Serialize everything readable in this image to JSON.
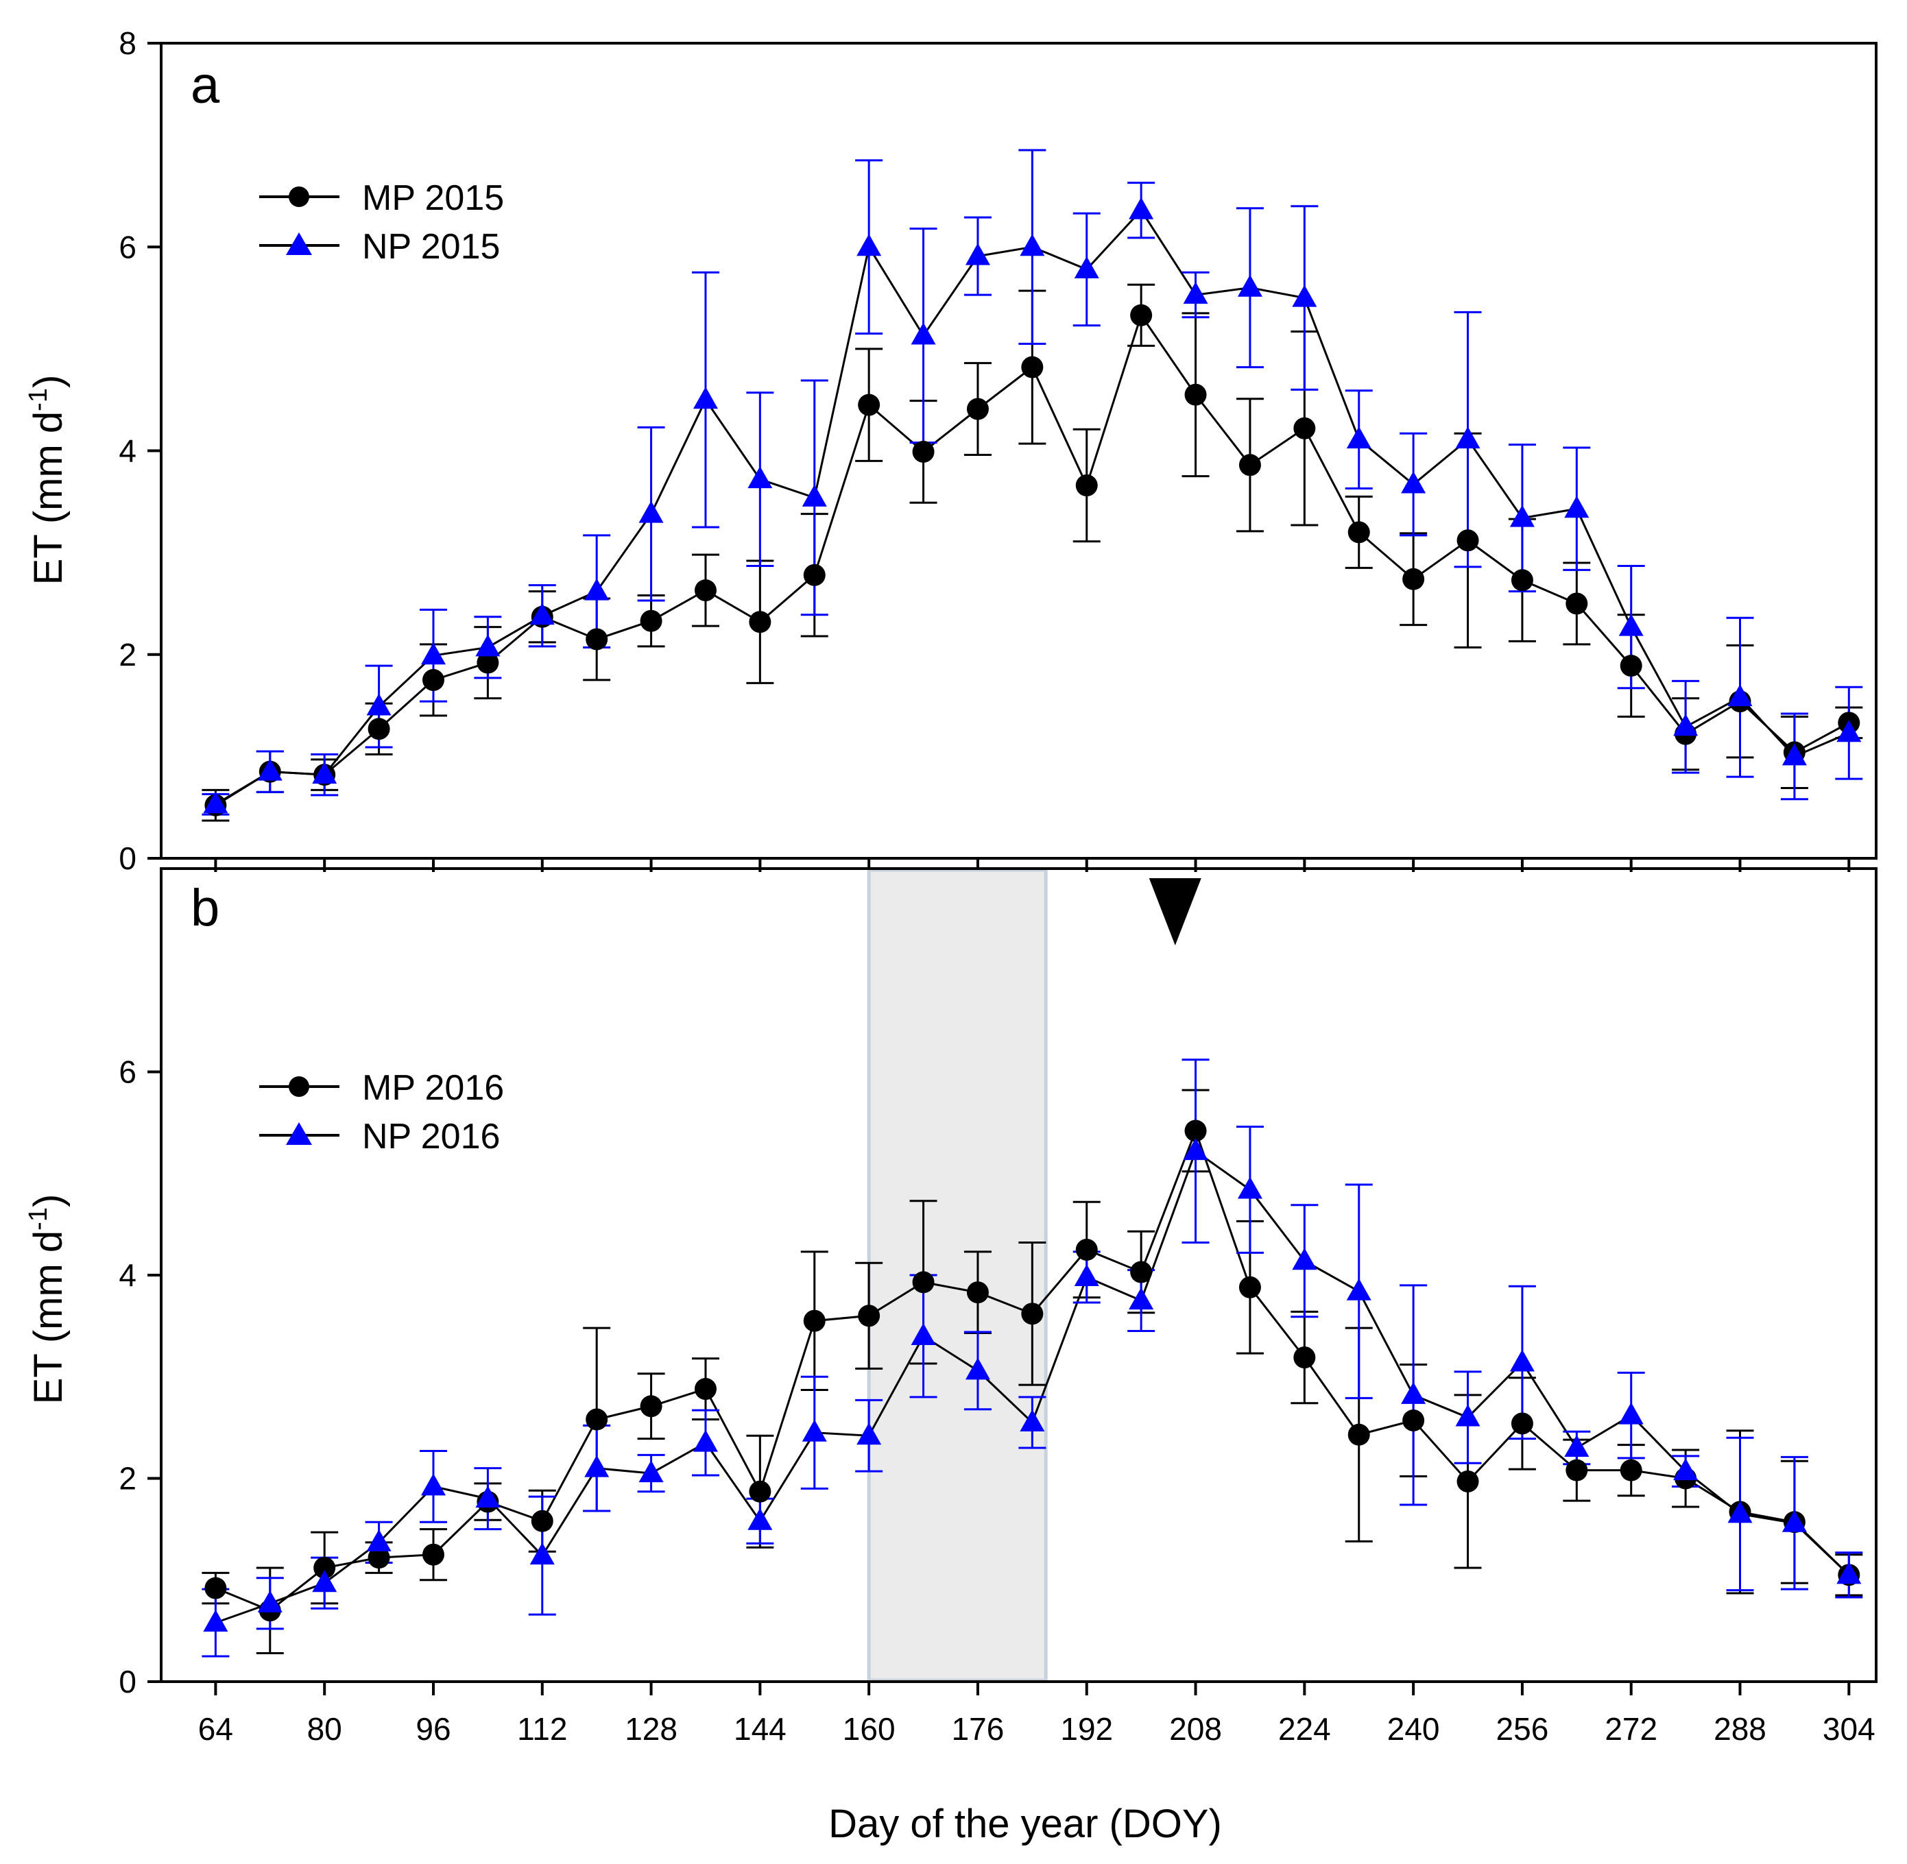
{
  "colors": {
    "mp": "#000000",
    "np": "#0000ff",
    "shade_fill": "#ebebeb",
    "shade_edge": "#c8d2de"
  },
  "xlabel": "Day of the year (DOY)",
  "chart_data": [
    {
      "type": "line",
      "panel": "a",
      "ylabel": "ET (mm d",
      "ylabel_sup": "-1",
      "ylabel_close": ")",
      "xlim": [
        56,
        308
      ],
      "ylim": [
        0,
        8
      ],
      "yticks": [
        0,
        2,
        4,
        6,
        8
      ],
      "legend_position": "top-left",
      "x": [
        64,
        72,
        80,
        88,
        96,
        104,
        112,
        120,
        128,
        136,
        144,
        152,
        160,
        168,
        176,
        184,
        192,
        200,
        208,
        216,
        224,
        232,
        240,
        248,
        256,
        264,
        272,
        280,
        288,
        296,
        304
      ],
      "series": [
        {
          "name": "MP 2015",
          "marker": "circle",
          "values": [
            0.52,
            0.85,
            0.82,
            1.27,
            1.75,
            1.92,
            2.37,
            2.15,
            2.33,
            2.63,
            2.32,
            2.78,
            4.45,
            3.99,
            4.41,
            4.82,
            3.66,
            5.33,
            4.55,
            3.86,
            4.22,
            3.2,
            2.74,
            3.12,
            2.73,
            2.5,
            1.89,
            1.22,
            1.54,
            1.04,
            1.33
          ],
          "errors": [
            0.15,
            0.2,
            0.15,
            0.25,
            0.35,
            0.35,
            0.25,
            0.4,
            0.25,
            0.35,
            0.6,
            0.6,
            0.55,
            0.5,
            0.45,
            0.75,
            0.55,
            0.3,
            0.8,
            0.65,
            0.95,
            0.35,
            0.45,
            1.05,
            0.6,
            0.4,
            0.5,
            0.35,
            0.55,
            0.35,
            0.15
          ]
        },
        {
          "name": "NP 2015",
          "marker": "triangle",
          "values": [
            0.53,
            0.85,
            0.82,
            1.49,
            1.99,
            2.07,
            2.38,
            2.62,
            3.38,
            4.5,
            3.72,
            3.54,
            6.0,
            5.13,
            5.91,
            6.0,
            5.78,
            6.36,
            5.53,
            5.6,
            5.5,
            4.11,
            3.67,
            4.11,
            3.34,
            3.43,
            2.27,
            1.29,
            1.58,
            1.0,
            1.23
          ],
          "errors": [
            0.1,
            0.2,
            0.2,
            0.4,
            0.45,
            0.3,
            0.3,
            0.55,
            0.85,
            1.25,
            0.85,
            1.15,
            0.85,
            1.05,
            0.38,
            0.95,
            0.55,
            0.27,
            0.22,
            0.78,
            0.9,
            0.48,
            0.5,
            1.25,
            0.72,
            0.6,
            0.6,
            0.45,
            0.78,
            0.42,
            0.45
          ]
        }
      ]
    },
    {
      "type": "line",
      "panel": "b",
      "ylabel": "ET (mm d",
      "ylabel_sup": "-1",
      "ylabel_close": ")",
      "xlim": [
        56,
        308
      ],
      "ylim": [
        0,
        8
      ],
      "yticks": [
        0,
        2,
        4,
        6
      ],
      "xticks": [
        64,
        80,
        96,
        112,
        128,
        144,
        160,
        176,
        192,
        208,
        224,
        240,
        256,
        272,
        288,
        304
      ],
      "legend_position": "top-left",
      "shaded_range": [
        160,
        186
      ],
      "event_marker_x": 205,
      "x": [
        64,
        72,
        80,
        88,
        96,
        104,
        112,
        120,
        128,
        136,
        144,
        152,
        160,
        168,
        176,
        184,
        192,
        200,
        208,
        216,
        224,
        232,
        240,
        248,
        256,
        264,
        272,
        280,
        288,
        296,
        304
      ],
      "series": [
        {
          "name": "MP 2016",
          "marker": "circle",
          "values": [
            0.92,
            0.7,
            1.12,
            1.22,
            1.25,
            1.77,
            1.58,
            2.58,
            2.71,
            2.88,
            1.87,
            3.55,
            3.6,
            3.93,
            3.83,
            3.62,
            4.25,
            4.03,
            5.42,
            3.88,
            3.19,
            2.43,
            2.57,
            1.97,
            2.54,
            2.08,
            2.08,
            2.0,
            1.67,
            1.57,
            1.05
          ],
          "errors": [
            0.15,
            0.42,
            0.35,
            0.15,
            0.25,
            0.18,
            0.3,
            0.9,
            0.32,
            0.3,
            0.55,
            0.68,
            0.52,
            0.8,
            0.4,
            0.7,
            0.47,
            0.4,
            0.4,
            0.65,
            0.45,
            1.05,
            0.55,
            0.85,
            0.45,
            0.3,
            0.25,
            0.28,
            0.8,
            0.6,
            0.2
          ]
        },
        {
          "name": "NP 2016",
          "marker": "triangle",
          "values": [
            0.58,
            0.77,
            0.97,
            1.37,
            1.92,
            1.8,
            1.24,
            2.1,
            2.05,
            2.35,
            1.58,
            2.45,
            2.42,
            3.4,
            3.06,
            2.55,
            3.98,
            3.75,
            5.22,
            4.84,
            4.14,
            3.84,
            2.82,
            2.6,
            3.14,
            2.3,
            2.62,
            2.07,
            1.65,
            1.56,
            1.05
          ],
          "errors": [
            0.33,
            0.25,
            0.25,
            0.2,
            0.35,
            0.3,
            0.58,
            0.42,
            0.18,
            0.32,
            0.22,
            0.55,
            0.35,
            0.6,
            0.38,
            0.25,
            0.25,
            0.3,
            0.9,
            0.62,
            0.55,
            1.05,
            1.08,
            0.45,
            0.75,
            0.16,
            0.42,
            0.15,
            0.75,
            0.65,
            0.22
          ]
        }
      ]
    }
  ]
}
